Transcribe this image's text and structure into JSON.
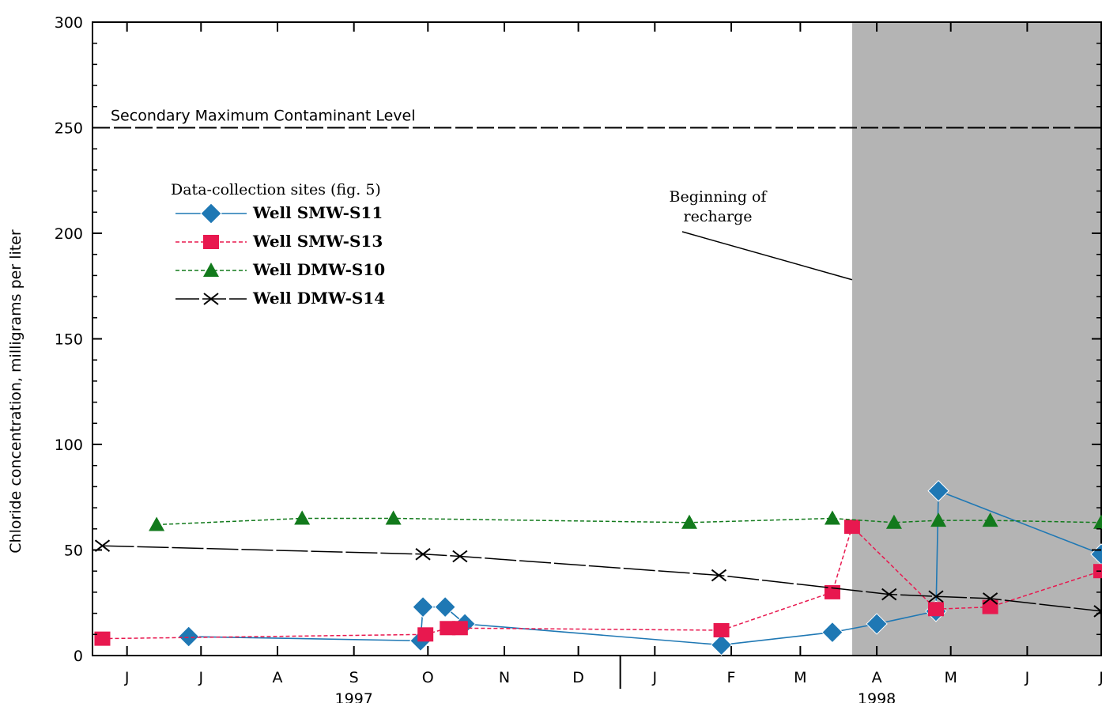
{
  "chart_data": {
    "type": "line",
    "title": "",
    "ylabel": "Chloride concentration, milligrams per liter",
    "xlabel": "",
    "ylim": [
      0,
      300
    ],
    "yticks": [
      0,
      50,
      100,
      150,
      200,
      250,
      300
    ],
    "xlim": [
      "1997-06-01",
      "1998-07-15"
    ],
    "month_labels": [
      {
        "label": "J",
        "date": "1997-06-15"
      },
      {
        "label": "J",
        "date": "1997-07-15"
      },
      {
        "label": "A",
        "date": "1997-08-15"
      },
      {
        "label": "S",
        "date": "1997-09-15"
      },
      {
        "label": "O",
        "date": "1997-10-15"
      },
      {
        "label": "N",
        "date": "1997-11-15"
      },
      {
        "label": "D",
        "date": "1997-12-15"
      },
      {
        "label": "J",
        "date": "1998-01-15"
      },
      {
        "label": "F",
        "date": "1998-02-15"
      },
      {
        "label": "M",
        "date": "1998-03-15"
      },
      {
        "label": "A",
        "date": "1998-04-15"
      },
      {
        "label": "M",
        "date": "1998-05-15"
      },
      {
        "label": "J",
        "date": "1998-06-15"
      },
      {
        "label": "J",
        "date": "1998-07-15"
      }
    ],
    "year_labels": [
      {
        "label": "1997",
        "date": "1997-09-15"
      },
      {
        "label": "1998",
        "date": "1998-04-15"
      }
    ],
    "year_divider_date": "1998-01-01",
    "reference_line": {
      "label": "Secondary Maximum Contaminant Level",
      "value": 250
    },
    "shaded_region": {
      "start": "1998-04-05",
      "end": "1998-07-15",
      "color": "#b4b4b4"
    },
    "annotation": {
      "text_lines": [
        "Beginning of",
        "recharge"
      ],
      "target_date": "1998-04-05",
      "target_value": 178
    },
    "legend": {
      "title": "Data-collection sites (fig. 5)",
      "position": "upper-left"
    },
    "series": [
      {
        "name": "Well SMW-S11",
        "color": "#1f78b4",
        "marker": "diamond",
        "line_style": "solid",
        "points": [
          {
            "date": "1997-07-10",
            "value": 9
          },
          {
            "date": "1997-10-12",
            "value": 7
          },
          {
            "date": "1997-10-13",
            "value": 23
          },
          {
            "date": "1997-10-22",
            "value": 23
          },
          {
            "date": "1997-10-30",
            "value": 15
          },
          {
            "date": "1998-02-11",
            "value": 5
          },
          {
            "date": "1998-03-28",
            "value": 11
          },
          {
            "date": "1998-04-15",
            "value": 15
          },
          {
            "date": "1998-05-09",
            "value": 21
          },
          {
            "date": "1998-05-10",
            "value": 78
          },
          {
            "date": "1998-07-15",
            "value": 48
          }
        ]
      },
      {
        "name": "Well SMW-S13",
        "color": "#e8184f",
        "marker": "square",
        "line_style": "dashed",
        "points": [
          {
            "date": "1997-06-05",
            "value": 8
          },
          {
            "date": "1997-10-14",
            "value": 10
          },
          {
            "date": "1997-10-23",
            "value": 13
          },
          {
            "date": "1997-10-28",
            "value": 13
          },
          {
            "date": "1998-02-11",
            "value": 12
          },
          {
            "date": "1998-03-28",
            "value": 30
          },
          {
            "date": "1998-04-05",
            "value": 61
          },
          {
            "date": "1998-05-09",
            "value": 22
          },
          {
            "date": "1998-05-31",
            "value": 23
          },
          {
            "date": "1998-07-15",
            "value": 40
          }
        ]
      },
      {
        "name": "Well DMW-S10",
        "color": "#127a1c",
        "marker": "triangle",
        "line_style": "dashed",
        "points": [
          {
            "date": "1997-06-27",
            "value": 62
          },
          {
            "date": "1997-08-25",
            "value": 65
          },
          {
            "date": "1997-10-01",
            "value": 65
          },
          {
            "date": "1998-01-29",
            "value": 63
          },
          {
            "date": "1998-03-28",
            "value": 65
          },
          {
            "date": "1998-04-22",
            "value": 63
          },
          {
            "date": "1998-05-10",
            "value": 64
          },
          {
            "date": "1998-05-31",
            "value": 64
          },
          {
            "date": "1998-07-15",
            "value": 63
          }
        ]
      },
      {
        "name": "Well DMW-S14",
        "color": "#000000",
        "marker": "x",
        "line_style": "long-dash",
        "points": [
          {
            "date": "1997-06-05",
            "value": 52
          },
          {
            "date": "1997-10-13",
            "value": 48
          },
          {
            "date": "1997-10-28",
            "value": 47
          },
          {
            "date": "1998-02-10",
            "value": 38
          },
          {
            "date": "1998-04-20",
            "value": 29
          },
          {
            "date": "1998-05-09",
            "value": 28
          },
          {
            "date": "1998-05-31",
            "value": 27
          },
          {
            "date": "1998-07-15",
            "value": 21
          }
        ]
      }
    ]
  }
}
